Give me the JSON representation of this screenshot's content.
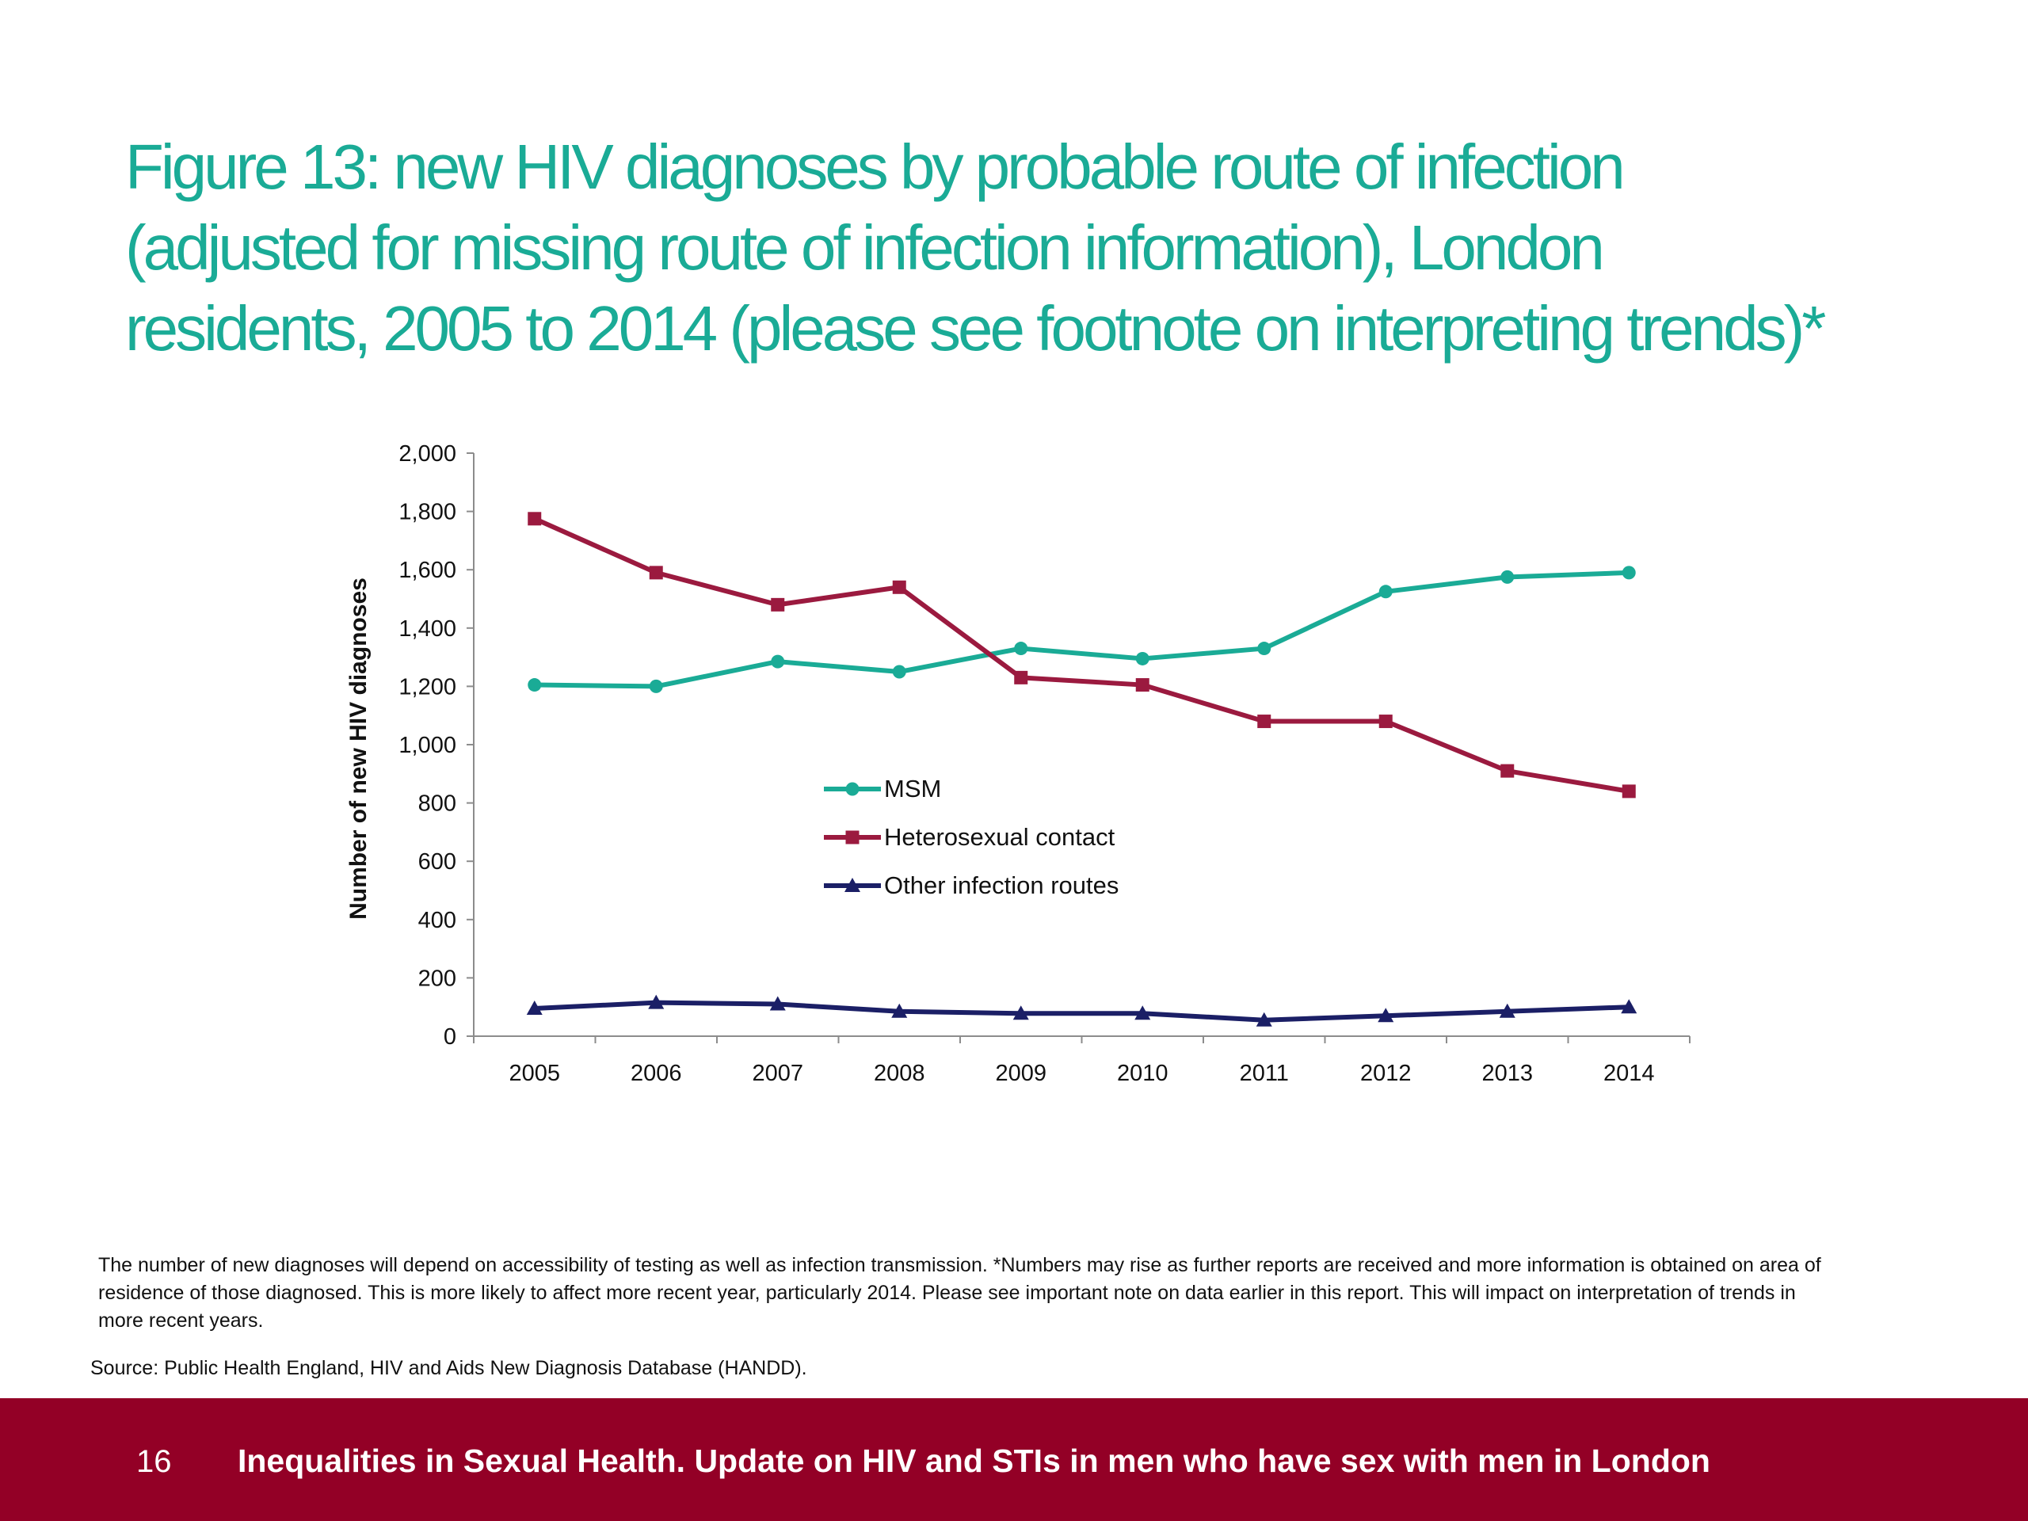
{
  "title": {
    "line1": "Figure 13: new HIV diagnoses by probable route of infection",
    "line2": "(adjusted for missing route of infection information), London",
    "line3": "residents, 2005 to 2014 (please see footnote on interpreting trends)*"
  },
  "footnote": "The number of new diagnoses will depend on accessibility of testing as well as infection transmission. *Numbers may rise as further reports are received and more information is obtained on area of residence of those diagnosed. This is more likely to affect more recent year, particularly 2014. Please see important note on data earlier in this report. This will impact on interpretation of trends in more recent years.",
  "source": "Source: Public Health England, HIV and Aids New Diagnosis Database (HANDD).",
  "footer": {
    "page_number": "16",
    "text": "Inequalities in Sexual Health. Update on HIV and STIs in men who have sex with men in London",
    "color": "#930026"
  },
  "chart_data": {
    "type": "line",
    "title": "",
    "xlabel": "",
    "ylabel": "Number of new HIV diagnoses",
    "ylim": [
      0,
      2000
    ],
    "yticks": [
      0,
      200,
      400,
      600,
      800,
      1000,
      1200,
      1400,
      1600,
      1800,
      2000
    ],
    "ytick_labels": [
      "0",
      "200",
      "400",
      "600",
      "800",
      "1,000",
      "1,200",
      "1,400",
      "1,600",
      "1,800",
      "2,000"
    ],
    "categories": [
      "2005",
      "2006",
      "2007",
      "2008",
      "2009",
      "2010",
      "2011",
      "2012",
      "2013",
      "2014"
    ],
    "grid": false,
    "legend_position": "center",
    "series": [
      {
        "name": "MSM",
        "color": "#1aab96",
        "marker": "circle",
        "values": [
          1205,
          1200,
          1285,
          1250,
          1330,
          1295,
          1330,
          1525,
          1575,
          1590
        ]
      },
      {
        "name": "Heterosexual contact",
        "color": "#9b1a3f",
        "marker": "square",
        "values": [
          1775,
          1590,
          1480,
          1540,
          1230,
          1205,
          1080,
          1080,
          910,
          840
        ]
      },
      {
        "name": "Other infection routes",
        "color": "#1b1f66",
        "marker": "triangle",
        "values": [
          95,
          115,
          110,
          85,
          78,
          78,
          55,
          70,
          85,
          100
        ]
      }
    ]
  }
}
